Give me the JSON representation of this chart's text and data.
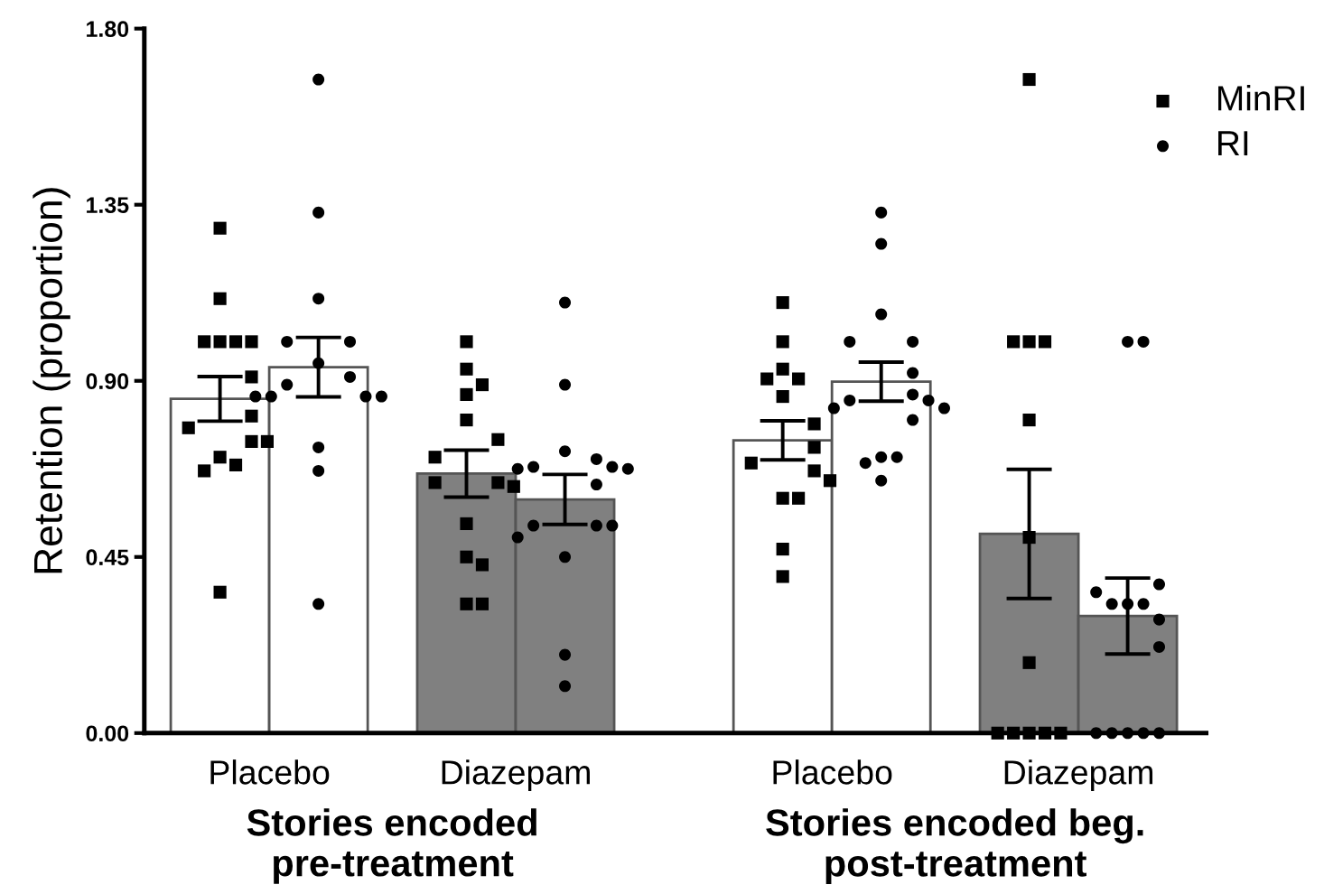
{
  "chart_data": {
    "type": "bar",
    "ylabel": "Retention (proportion)",
    "categories": [
      "Stories encoded\npre-treatment",
      "Stories encoded beg.\npost-treatment"
    ],
    "annotations": [
      "Placebo",
      "Diazepam",
      "Placebo",
      "Diazepam"
    ],
    "ylim": [
      0,
      1.8
    ],
    "yticks": [
      {
        "value": 0,
        "label": "0.00"
      },
      0.45,
      {
        "value": 0.9,
        "label": "0.90"
      },
      1.35,
      {
        "value": 1.8,
        "label": "1.80"
      }
    ],
    "grid": false,
    "legend": "top right",
    "series": [
      {
        "color": "#ffffff",
        "values": [
          0.854,
          0.748
        ],
        "errors": [
          0.057,
          0.05
        ]
      },
      {
        "color": "#ffffff",
        "values": [
          0.935,
          0.898
        ],
        "errors": [
          0.076,
          0.05
        ]
      },
      {
        "color": "#808080",
        "values": [
          0.663,
          0.509
        ],
        "errors": [
          0.06,
          0.165
        ]
      },
      {
        "color": "#808080",
        "values": [
          0.597,
          0.299
        ],
        "errors": [
          0.064,
          0.097
        ]
      },
      {
        "type": "scatter",
        "name": "MinRI",
        "marker": "square",
        "color": "#000000",
        "x": [
          "Stories encoded\npre-treatment",
          "Stories encoded\npre-treatment",
          "Stories encoded\npre-treatment",
          "Stories encoded\npre-treatment",
          "Stories encoded\npre-treatment",
          "Stories encoded\npre-treatment",
          "Stories encoded\npre-treatment",
          "Stories encoded\npre-treatment",
          "Stories encoded\npre-treatment",
          "Stories encoded\npre-treatment",
          "Stories encoded\npre-treatment",
          "Stories encoded\npre-treatment",
          "Stories encoded\npre-treatment",
          "Stories encoded\npre-treatment",
          "Stories encoded\npre-treatment",
          "Stories encoded beg.\npost-treatment",
          "Stories encoded beg.\npost-treatment",
          "Stories encoded beg.\npost-treatment",
          "Stories encoded beg.\npost-treatment",
          "Stories encoded beg.\npost-treatment",
          "Stories encoded beg.\npost-treatment",
          "Stories encoded beg.\npost-treatment",
          "Stories encoded beg.\npost-treatment",
          "Stories encoded beg.\npost-treatment",
          "Stories encoded beg.\npost-treatment",
          "Stories encoded beg.\npost-treatment",
          "Stories encoded beg.\npost-treatment",
          "Stories encoded beg.\npost-treatment",
          "Stories encoded beg.\npost-treatment",
          "Stories encoded beg.\npost-treatment"
        ],
        "values": [
          1.29,
          1.11,
          1.0,
          1.0,
          1.0,
          1.0,
          0.91,
          0.81,
          0.78,
          0.745,
          0.745,
          0.705,
          0.685,
          0.67,
          0.36,
          1.1,
          1.0,
          0.93,
          0.905,
          0.905,
          0.86,
          0.79,
          0.73,
          0.69,
          0.67,
          0.645,
          0.6,
          0.6,
          0.47,
          0.4
        ]
      },
      {
        "type": "scatter",
        "name": "RI",
        "marker": "circle",
        "color": "#000000",
        "x": [
          "Stories encoded\npre-treatment",
          "Stories encoded\npre-treatment",
          "Stories encoded\npre-treatment",
          "Stories encoded\npre-treatment",
          "Stories encoded\npre-treatment",
          "Stories encoded\npre-treatment",
          "Stories encoded\npre-treatment",
          "Stories encoded\npre-treatment",
          "Stories encoded\npre-treatment",
          "Stories encoded\npre-treatment",
          "Stories encoded\npre-treatment",
          "Stories encoded\npre-treatment",
          "Stories encoded\npre-treatment",
          "Stories encoded\npre-treatment",
          "Stories encoded\npre-treatment",
          "Stories encoded beg.\npost-treatment",
          "Stories encoded beg.\npost-treatment",
          "Stories encoded beg.\npost-treatment",
          "Stories encoded beg.\npost-treatment",
          "Stories encoded beg.\npost-treatment",
          "Stories encoded beg.\npost-treatment",
          "Stories encoded beg.\npost-treatment",
          "Stories encoded beg.\npost-treatment",
          "Stories encoded beg.\npost-treatment",
          "Stories encoded beg.\npost-treatment",
          "Stories encoded beg.\npost-treatment",
          "Stories encoded beg.\npost-treatment",
          "Stories encoded beg.\npost-treatment",
          "Stories encoded beg.\npost-treatment",
          "Stories encoded beg.\npost-treatment",
          "Stories encoded beg.\npost-treatment"
        ],
        "values": [
          1.67,
          1.33,
          1.11,
          1.0,
          1.0,
          0.945,
          0.91,
          0.89,
          0.86,
          0.86,
          0.86,
          0.86,
          0.73,
          0.67,
          0.33,
          1.33,
          1.25,
          1.07,
          1.0,
          1.0,
          0.92,
          0.865,
          0.85,
          0.85,
          0.83,
          0.83,
          0.8,
          0.705,
          0.705,
          0.69,
          0.645
        ]
      },
      {
        "type": "scatter",
        "marker": "square",
        "color": "#000000",
        "x": [
          "Stories encoded\npre-treatment",
          "Stories encoded\npre-treatment",
          "Stories encoded\npre-treatment",
          "Stories encoded\npre-treatment",
          "Stories encoded\npre-treatment",
          "Stories encoded\npre-treatment",
          "Stories encoded\npre-treatment",
          "Stories encoded\npre-treatment",
          "Stories encoded\npre-treatment",
          "Stories encoded\npre-treatment",
          "Stories encoded\npre-treatment",
          "Stories encoded\npre-treatment",
          "Stories encoded\npre-treatment",
          "Stories encoded\npre-treatment",
          "Stories encoded\npre-treatment",
          "Stories encoded beg.\npost-treatment",
          "Stories encoded beg.\npost-treatment",
          "Stories encoded beg.\npost-treatment",
          "Stories encoded beg.\npost-treatment",
          "Stories encoded beg.\npost-treatment",
          "Stories encoded beg.\npost-treatment",
          "Stories encoded beg.\npost-treatment",
          "Stories encoded beg.\npost-treatment",
          "Stories encoded beg.\npost-treatment",
          "Stories encoded beg.\npost-treatment",
          "Stories encoded beg.\npost-treatment",
          "Stories encoded beg.\npost-treatment"
        ],
        "values": [
          1.0,
          0.93,
          0.89,
          0.865,
          0.8,
          0.75,
          0.705,
          0.64,
          0.64,
          0.63,
          0.535,
          0.45,
          0.43,
          0.33,
          0.33,
          1.67,
          1.0,
          1.0,
          1.0,
          0.8,
          0.5,
          0.18,
          0,
          0,
          0,
          0,
          0
        ]
      },
      {
        "type": "scatter",
        "marker": "circle",
        "color": "#000000",
        "x": [
          "Stories encoded\npre-treatment",
          "Stories encoded\npre-treatment",
          "Stories encoded\npre-treatment",
          "Stories encoded\npre-treatment",
          "Stories encoded\npre-treatment",
          "Stories encoded\npre-treatment",
          "Stories encoded\npre-treatment",
          "Stories encoded\npre-treatment",
          "Stories encoded\npre-treatment",
          "Stories encoded\npre-treatment",
          "Stories encoded\npre-treatment",
          "Stories encoded\npre-treatment",
          "Stories encoded\npre-treatment",
          "Stories encoded\npre-treatment",
          "Stories encoded\npre-treatment",
          "Stories encoded\npre-treatment",
          "Stories encoded beg.\npost-treatment",
          "Stories encoded beg.\npost-treatment",
          "Stories encoded beg.\npost-treatment",
          "Stories encoded beg.\npost-treatment",
          "Stories encoded beg.\npost-treatment",
          "Stories encoded beg.\npost-treatment",
          "Stories encoded beg.\npost-treatment",
          "Stories encoded beg.\npost-treatment",
          "Stories encoded beg.\npost-treatment",
          "Stories encoded beg.\npost-treatment",
          "Stories encoded beg.\npost-treatment",
          "Stories encoded beg.\npost-treatment",
          "Stories encoded beg.\npost-treatment",
          "Stories encoded beg.\npost-treatment"
        ],
        "values": [
          1.1,
          0.89,
          0.72,
          0.7,
          0.68,
          0.68,
          0.675,
          0.675,
          0.635,
          0.53,
          0.53,
          0.53,
          0.5,
          0.45,
          0.2,
          0.12,
          1.0,
          1.0,
          0.38,
          0.36,
          0.33,
          0.33,
          0.33,
          0.29,
          0.22,
          0,
          0,
          0,
          0,
          0
        ]
      }
    ]
  }
}
